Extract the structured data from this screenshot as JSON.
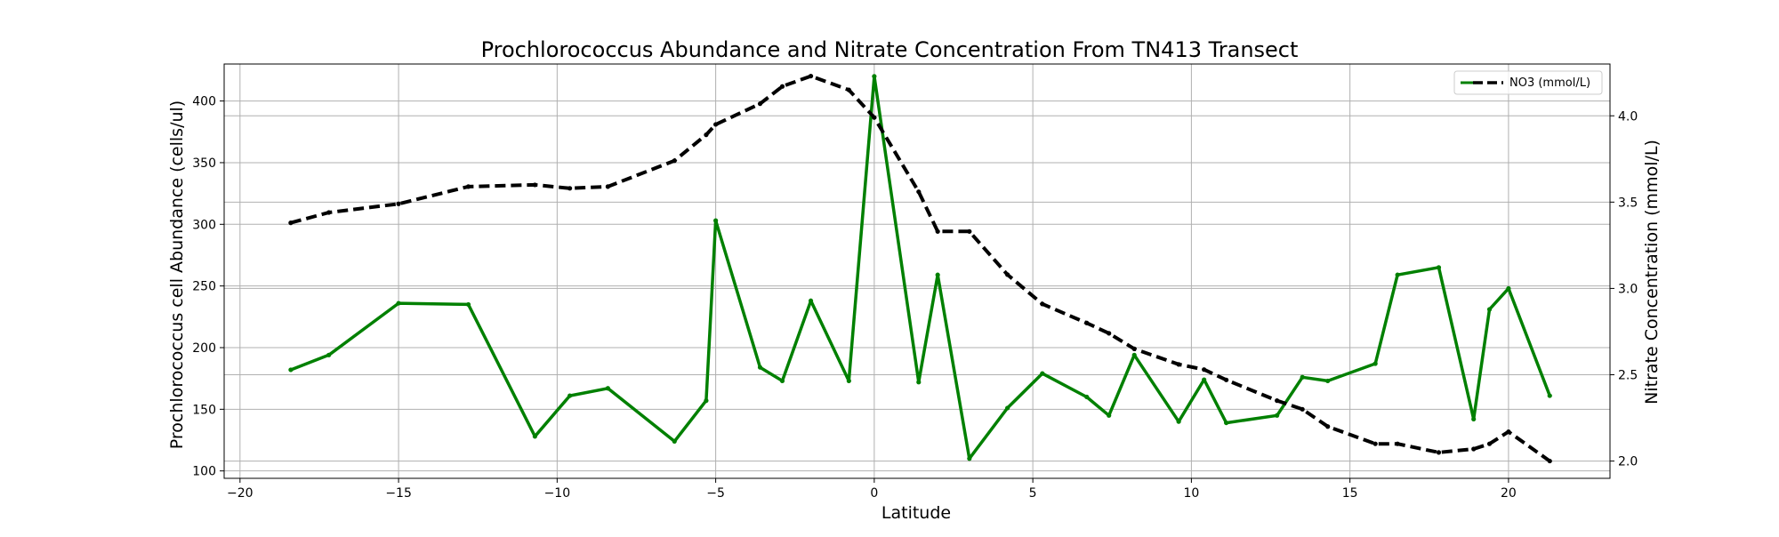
{
  "chart_data": {
    "type": "line",
    "title": "Prochlorococcus Abundance and Nitrate Concentration From TN413 Transect",
    "xlabel": "Latitude",
    "ylabel_left": "Prochlorococcus cell Abundance (cells/ul)",
    "ylabel_right": "Nitrate Concentration (mmol/L)",
    "xlim": [
      -20.5,
      23.2
    ],
    "ylim_left": [
      94,
      430
    ],
    "ylim_right": [
      1.9,
      4.3
    ],
    "x_ticks": [
      -20,
      -15,
      -10,
      -5,
      0,
      5,
      10,
      15,
      20
    ],
    "x_tick_labels": [
      "−20",
      "−15",
      "−10",
      "−5",
      "0",
      "5",
      "10",
      "15",
      "20"
    ],
    "y_left_ticks": [
      100,
      150,
      200,
      250,
      300,
      350,
      400
    ],
    "y_left_tick_labels": [
      "100",
      "150",
      "200",
      "250",
      "300",
      "350",
      "400"
    ],
    "y_right_ticks": [
      2.0,
      2.5,
      3.0,
      3.5,
      4.0
    ],
    "y_right_tick_labels": [
      "2.0",
      "2.5",
      "3.0",
      "3.5",
      "4.0"
    ],
    "grid": true,
    "legend": {
      "placement": "top-right",
      "entries": [
        {
          "label": "",
          "color": "#008000",
          "style": "solid"
        },
        {
          "label": "NO3 (mmol/L)",
          "color": "#000000",
          "style": "dashed"
        }
      ]
    },
    "series": [
      {
        "axis": "left",
        "color": "#008000",
        "style": "solid",
        "points": [
          [
            -18.4,
            182
          ],
          [
            -17.2,
            194
          ],
          [
            -15.0,
            236
          ],
          [
            -12.8,
            235
          ],
          [
            -10.7,
            128
          ],
          [
            -9.6,
            161
          ],
          [
            -8.4,
            167
          ],
          [
            -6.3,
            124
          ],
          [
            -5.3,
            157
          ],
          [
            -5.0,
            303
          ],
          [
            -3.6,
            184
          ],
          [
            -2.9,
            173
          ],
          [
            -2.0,
            238
          ],
          [
            -0.8,
            173
          ],
          [
            0.0,
            420
          ],
          [
            1.4,
            172
          ],
          [
            2.0,
            259
          ],
          [
            3.0,
            110
          ],
          [
            4.2,
            151
          ],
          [
            5.3,
            179
          ],
          [
            6.7,
            160
          ],
          [
            7.4,
            145
          ],
          [
            8.2,
            194
          ],
          [
            9.6,
            140
          ],
          [
            10.4,
            174
          ],
          [
            11.1,
            139
          ],
          [
            12.7,
            145
          ],
          [
            13.5,
            176
          ],
          [
            14.3,
            173
          ],
          [
            15.8,
            187
          ],
          [
            16.5,
            259
          ],
          [
            17.8,
            265
          ],
          [
            18.9,
            142
          ],
          [
            19.4,
            231
          ],
          [
            20.0,
            248
          ],
          [
            21.3,
            161
          ]
        ]
      },
      {
        "name": "NO3 (mmol/L)",
        "axis": "right",
        "color": "#000000",
        "style": "dashed",
        "points": [
          [
            -18.4,
            3.38
          ],
          [
            -17.2,
            3.44
          ],
          [
            -15.0,
            3.49
          ],
          [
            -12.8,
            3.59
          ],
          [
            -10.7,
            3.6
          ],
          [
            -9.6,
            3.58
          ],
          [
            -8.4,
            3.59
          ],
          [
            -6.3,
            3.74
          ],
          [
            -5.3,
            3.89
          ],
          [
            -5.0,
            3.95
          ],
          [
            -3.6,
            4.07
          ],
          [
            -2.9,
            4.17
          ],
          [
            -2.0,
            4.23
          ],
          [
            -0.8,
            4.15
          ],
          [
            0.0,
            3.99
          ],
          [
            1.4,
            3.56
          ],
          [
            2.0,
            3.33
          ],
          [
            3.0,
            3.33
          ],
          [
            4.2,
            3.08
          ],
          [
            5.3,
            2.91
          ],
          [
            6.7,
            2.8
          ],
          [
            7.4,
            2.74
          ],
          [
            8.2,
            2.65
          ],
          [
            9.6,
            2.56
          ],
          [
            10.4,
            2.53
          ],
          [
            11.1,
            2.47
          ],
          [
            12.7,
            2.35
          ],
          [
            13.5,
            2.3
          ],
          [
            14.3,
            2.2
          ],
          [
            15.8,
            2.1
          ],
          [
            16.5,
            2.1
          ],
          [
            17.8,
            2.05
          ],
          [
            18.9,
            2.07
          ],
          [
            19.4,
            2.1
          ],
          [
            20.0,
            2.17
          ],
          [
            21.3,
            2.0
          ]
        ]
      }
    ]
  }
}
